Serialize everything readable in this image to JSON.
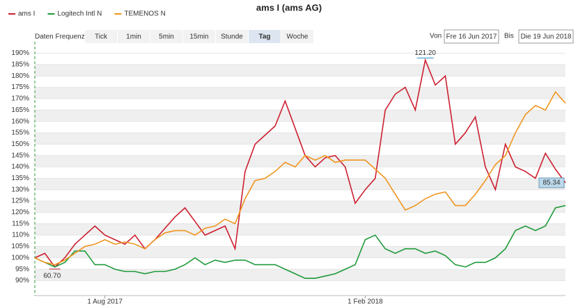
{
  "chart_data": {
    "type": "line",
    "title": "ams I (ams AG)",
    "categories": [
      null,
      null,
      null,
      null,
      null,
      null,
      null,
      "1 Aug 2017",
      null,
      null,
      null,
      null,
      null,
      null,
      null,
      null,
      null,
      null,
      null,
      null,
      null,
      null,
      null,
      null,
      null,
      null,
      null,
      null,
      null,
      null,
      null,
      null,
      null,
      "1 Feb 2018",
      null,
      null,
      null,
      null,
      null,
      null,
      null,
      null,
      null,
      null,
      null,
      null,
      null,
      null,
      null,
      null,
      null,
      null,
      null,
      null
    ],
    "series": [
      {
        "name": "ams I",
        "color": "#cc1f2f",
        "values": [
          100,
          102,
          96,
          100,
          106,
          110,
          114,
          110,
          108,
          106,
          110,
          104,
          108,
          113,
          118,
          122,
          116,
          110,
          112,
          114,
          104,
          138,
          150,
          154,
          158,
          169,
          157,
          145,
          140,
          144,
          145,
          140,
          124,
          130,
          135,
          165,
          172,
          175,
          165,
          187,
          176,
          180,
          150,
          155,
          162,
          140,
          130,
          150,
          140,
          138,
          135,
          146,
          139,
          133
        ]
      },
      {
        "name": "Logitech Intl N",
        "color": "#1f9a3a",
        "values": [
          100,
          98,
          96,
          98,
          103,
          103,
          97,
          97,
          95,
          94,
          94,
          93,
          94,
          94,
          95,
          97,
          100,
          97,
          99,
          98,
          99,
          99,
          97,
          97,
          97,
          95,
          93,
          91,
          91,
          92,
          93,
          95,
          97,
          108,
          110,
          104,
          102,
          104,
          104,
          102,
          103,
          101,
          97,
          96,
          98,
          98,
          100,
          104,
          112,
          114,
          112,
          114,
          122,
          123
        ]
      },
      {
        "name": "TEMENOS N",
        "color": "#f0951e",
        "values": [
          100,
          98,
          97,
          99,
          102,
          105,
          106,
          108,
          106,
          107,
          106,
          104,
          108,
          111,
          112,
          112,
          110,
          113,
          114,
          117,
          115,
          126,
          134,
          135,
          138,
          142,
          140,
          145,
          143,
          145,
          142,
          143,
          143,
          143,
          139,
          135,
          128,
          121,
          123,
          126,
          128,
          129,
          123,
          123,
          128,
          134,
          141,
          145,
          155,
          163,
          167,
          165,
          173,
          168
        ]
      }
    ],
    "ylim": [
      88,
      192
    ],
    "yticks": [
      {
        "value": 90,
        "label": "90%"
      },
      {
        "value": 95,
        "label": "95%"
      },
      {
        "value": 100,
        "label": "100%"
      },
      {
        "value": 105,
        "label": "105%"
      },
      {
        "value": 110,
        "label": "110%"
      },
      {
        "value": 115,
        "label": "115%"
      },
      {
        "value": 120,
        "label": "120%"
      },
      {
        "value": 125,
        "label": "125%"
      },
      {
        "value": 130,
        "label": "130%"
      },
      {
        "value": 135,
        "label": "135%"
      },
      {
        "value": 140,
        "label": "140%"
      },
      {
        "value": 145,
        "label": "145%"
      },
      {
        "value": 150,
        "label": "150%"
      },
      {
        "value": 155,
        "label": "155%"
      },
      {
        "value": 160,
        "label": "160%"
      },
      {
        "value": 165,
        "label": "165%"
      },
      {
        "value": 170,
        "label": "170%"
      },
      {
        "value": 175,
        "label": "175%"
      },
      {
        "value": 180,
        "label": "180%"
      },
      {
        "value": 185,
        "label": "185%"
      },
      {
        "value": 190,
        "label": "190%"
      }
    ],
    "grid": true,
    "legend": "top-left",
    "annotations": [
      {
        "text": "121.20",
        "series": 0,
        "point": "max",
        "color": "#2a8fc9"
      },
      {
        "text": "60.70",
        "series": 0,
        "point": "min",
        "color": "#c0182a"
      },
      {
        "text": "85.34",
        "series": 0,
        "point": "last",
        "color": "#6a2fa0"
      }
    ]
  },
  "controls": {
    "label": "Daten Frequenz",
    "buttons": [
      "Tick",
      "1min",
      "5min",
      "15min",
      "Stunde",
      "Tag",
      "Woche"
    ],
    "selected": "Tag",
    "from_label": "Von",
    "from": "Fre 16 Jun 2017",
    "to_label": "Bis",
    "to": "Die 19 Jun 2018"
  }
}
